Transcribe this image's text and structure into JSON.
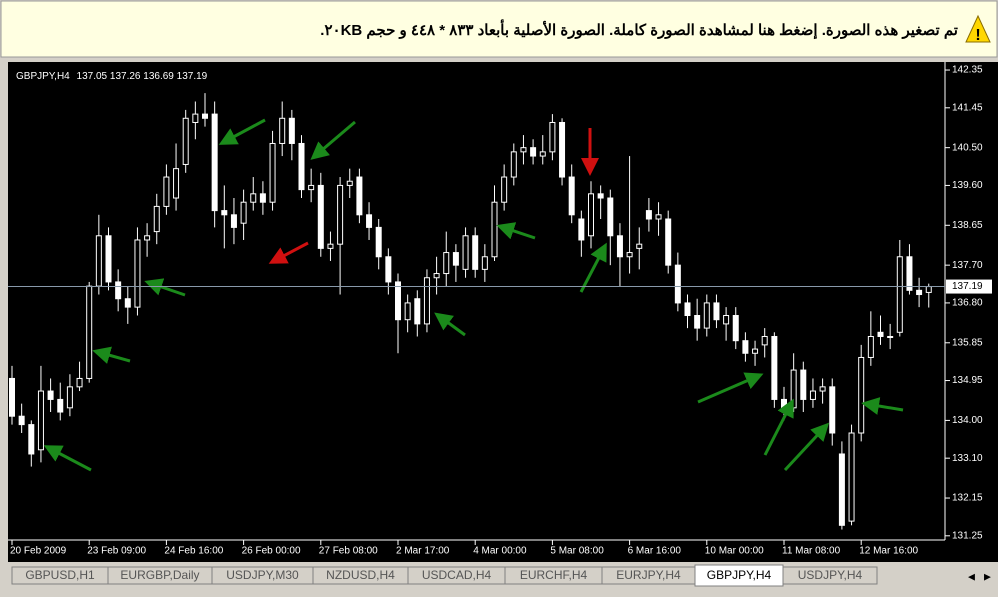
{
  "banner": {
    "text": "تم تصغير هذه الصورة. إضغط هنا لمشاهدة الصورة كاملة. الصورة الأصلية بأبعاد ٨٣٣ * ٤٤٨ و حجم ٢٠KB."
  },
  "chart_data": {
    "type": "candlestick",
    "symbol": "GBPJPY,H4",
    "ohlc": [
      137.05,
      137.26,
      136.69,
      137.19
    ],
    "current_price": 137.19,
    "ylim": [
      131.15,
      142.47
    ],
    "yticks": [
      142.35,
      141.45,
      {
        "value": 140.5,
        "label": "140.50"
      },
      {
        "value": 139.6,
        "label": "139.60"
      },
      138.65,
      {
        "value": 137.7,
        "label": "137.70"
      },
      {
        "value": 136.8,
        "label": "136.80"
      },
      135.85,
      134.95,
      {
        "value": 134.0,
        "label": "134.00"
      },
      {
        "value": 133.1,
        "label": "133.10"
      },
      132.15,
      131.25
    ],
    "categories": [
      "20 Feb 2009",
      null,
      null,
      null,
      null,
      null,
      null,
      null,
      "23 Feb 09:00",
      null,
      null,
      null,
      null,
      null,
      null,
      null,
      "24 Feb 16:00",
      null,
      null,
      null,
      null,
      null,
      null,
      null,
      "26 Feb 00:00",
      null,
      null,
      null,
      null,
      null,
      null,
      null,
      "27 Feb 08:00",
      null,
      null,
      null,
      null,
      null,
      null,
      null,
      "2 Mar 17:00",
      null,
      null,
      null,
      null,
      null,
      null,
      null,
      "4 Mar 00:00",
      null,
      null,
      null,
      null,
      null,
      null,
      null,
      "5 Mar 08:00",
      null,
      null,
      null,
      null,
      null,
      null,
      null,
      "6 Mar 16:00",
      null,
      null,
      null,
      null,
      null,
      null,
      null,
      "10 Mar 00:00",
      null,
      null,
      null,
      null,
      null,
      null,
      null,
      "11 Mar 08:00",
      null,
      null,
      null,
      null,
      null,
      null,
      null,
      "12 Mar 16:00",
      null,
      null,
      null,
      null,
      null,
      null,
      null
    ],
    "candles": [
      [
        135.0,
        135.3,
        133.9,
        134.1
      ],
      [
        134.1,
        134.4,
        133.7,
        133.9
      ],
      [
        133.9,
        134.0,
        132.9,
        133.2
      ],
      [
        133.3,
        135.3,
        133.0,
        134.7
      ],
      [
        134.7,
        135.0,
        134.2,
        134.5
      ],
      [
        134.5,
        134.9,
        134.0,
        134.2
      ],
      [
        134.3,
        135.1,
        134.1,
        134.8
      ],
      [
        134.8,
        135.4,
        134.7,
        135.0
      ],
      [
        135.0,
        137.3,
        134.9,
        137.2
      ],
      [
        137.2,
        138.9,
        137.0,
        138.4
      ],
      [
        138.4,
        138.6,
        137.1,
        137.3
      ],
      [
        137.3,
        137.6,
        136.6,
        136.9
      ],
      [
        136.9,
        137.2,
        136.3,
        136.7
      ],
      [
        136.7,
        138.6,
        136.5,
        138.3
      ],
      [
        138.3,
        138.7,
        137.9,
        138.4
      ],
      [
        138.5,
        139.4,
        138.2,
        139.1
      ],
      [
        139.1,
        140.1,
        138.9,
        139.8
      ],
      [
        139.3,
        140.6,
        139.0,
        140.0
      ],
      [
        140.1,
        141.4,
        139.9,
        141.2
      ],
      [
        141.1,
        141.6,
        140.7,
        141.3
      ],
      [
        141.3,
        141.8,
        141.0,
        141.2
      ],
      [
        141.3,
        141.6,
        138.6,
        139.0
      ],
      [
        139.0,
        139.6,
        138.1,
        138.9
      ],
      [
        138.9,
        139.3,
        138.2,
        138.6
      ],
      [
        138.7,
        139.5,
        138.3,
        139.2
      ],
      [
        139.2,
        139.8,
        139.0,
        139.4
      ],
      [
        139.4,
        139.7,
        138.9,
        139.2
      ],
      [
        139.2,
        140.9,
        139.0,
        140.6
      ],
      [
        140.6,
        141.6,
        140.3,
        141.2
      ],
      [
        141.2,
        141.4,
        140.2,
        140.6
      ],
      [
        140.6,
        140.8,
        139.3,
        139.5
      ],
      [
        139.5,
        140.0,
        139.2,
        139.6
      ],
      [
        139.6,
        139.9,
        137.9,
        138.1
      ],
      [
        138.1,
        138.5,
        137.8,
        138.2
      ],
      [
        138.2,
        139.8,
        137.0,
        139.6
      ],
      [
        139.6,
        140.0,
        139.3,
        139.7
      ],
      [
        139.8,
        140.0,
        138.7,
        138.9
      ],
      [
        138.9,
        139.2,
        138.3,
        138.6
      ],
      [
        138.6,
        138.8,
        137.6,
        137.9
      ],
      [
        137.9,
        138.1,
        137.0,
        137.3
      ],
      [
        137.3,
        137.5,
        135.6,
        136.4
      ],
      [
        136.4,
        137.0,
        136.1,
        136.8
      ],
      [
        136.9,
        137.1,
        136.0,
        136.3
      ],
      [
        136.3,
        137.6,
        136.1,
        137.4
      ],
      [
        137.4,
        137.9,
        137.0,
        137.5
      ],
      [
        137.5,
        138.5,
        137.2,
        138.0
      ],
      [
        138.0,
        138.2,
        137.3,
        137.7
      ],
      [
        137.6,
        138.6,
        137.4,
        138.4
      ],
      [
        138.4,
        138.6,
        137.4,
        137.6
      ],
      [
        137.6,
        138.2,
        137.3,
        137.9
      ],
      [
        137.9,
        139.6,
        137.8,
        139.2
      ],
      [
        139.2,
        140.1,
        139.0,
        139.8
      ],
      [
        139.8,
        140.6,
        139.6,
        140.4
      ],
      [
        140.4,
        140.8,
        140.1,
        140.5
      ],
      [
        140.5,
        140.7,
        140.1,
        140.3
      ],
      [
        140.3,
        140.8,
        140.1,
        140.4
      ],
      [
        140.4,
        141.3,
        140.2,
        141.1
      ],
      [
        141.1,
        141.2,
        139.6,
        139.8
      ],
      [
        139.8,
        140.1,
        138.7,
        138.9
      ],
      [
        138.8,
        139.0,
        137.9,
        138.3
      ],
      [
        138.4,
        139.7,
        138.1,
        139.4
      ],
      [
        139.4,
        139.6,
        138.8,
        139.3
      ],
      [
        139.3,
        139.5,
        137.7,
        138.4
      ],
      [
        138.4,
        138.7,
        137.2,
        137.9
      ],
      [
        137.9,
        140.3,
        137.5,
        138.0
      ],
      [
        138.1,
        138.6,
        137.6,
        138.2
      ],
      [
        139.0,
        139.3,
        138.5,
        138.8
      ],
      [
        138.8,
        139.2,
        138.4,
        138.9
      ],
      [
        138.8,
        139.0,
        137.5,
        137.7
      ],
      [
        137.7,
        138.0,
        136.6,
        136.8
      ],
      [
        136.8,
        137.0,
        136.2,
        136.5
      ],
      [
        136.5,
        136.9,
        135.9,
        136.2
      ],
      [
        136.2,
        137.0,
        136.0,
        136.8
      ],
      [
        136.8,
        137.0,
        136.2,
        136.4
      ],
      [
        136.3,
        136.7,
        135.9,
        136.5
      ],
      [
        136.5,
        136.7,
        135.7,
        135.9
      ],
      [
        135.9,
        136.1,
        135.4,
        135.6
      ],
      [
        135.6,
        135.9,
        135.3,
        135.7
      ],
      [
        135.8,
        136.2,
        135.5,
        136.0
      ],
      [
        136.0,
        136.1,
        134.3,
        134.5
      ],
      [
        134.5,
        134.8,
        134.0,
        134.3
      ],
      [
        134.3,
        135.6,
        134.2,
        135.2
      ],
      [
        135.2,
        135.4,
        134.2,
        134.5
      ],
      [
        134.5,
        135.0,
        134.3,
        134.7
      ],
      [
        134.7,
        135.0,
        134.4,
        134.8
      ],
      [
        134.8,
        135.0,
        133.4,
        133.7
      ],
      [
        133.2,
        133.5,
        131.4,
        131.5
      ],
      [
        131.6,
        133.9,
        131.5,
        133.7
      ],
      [
        133.7,
        135.8,
        133.5,
        135.5
      ],
      [
        135.5,
        136.6,
        135.3,
        136.0
      ],
      [
        136.1,
        136.5,
        135.8,
        136.0
      ],
      [
        136.0,
        136.3,
        135.7,
        136.0
      ],
      [
        136.1,
        138.3,
        136.0,
        137.9
      ],
      [
        137.9,
        138.2,
        137.0,
        137.1
      ],
      [
        137.1,
        137.4,
        136.7,
        137.0
      ],
      [
        137.05,
        137.26,
        136.69,
        137.19
      ]
    ]
  },
  "tabs": [
    "GBPUSD,H1",
    "EURGBP,Daily",
    "USDJPY,M30",
    "NZDUSD,H4",
    "USDCAD,H4",
    "EURCHF,H4",
    "EURJPY,H4",
    "GBPJPY,H4",
    "USDJPY,H4"
  ],
  "active_tab": 7
}
